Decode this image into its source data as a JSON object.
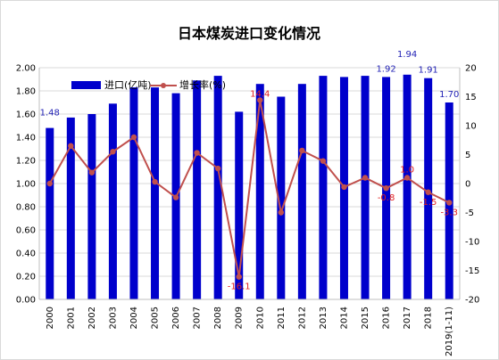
{
  "chart_data": {
    "type": "bar",
    "title": "日本煤炭进口变化情况",
    "categories": [
      "2000",
      "2001",
      "2002",
      "2003",
      "2004",
      "2005",
      "2006",
      "2007",
      "2008",
      "2009",
      "2010",
      "2011",
      "2012",
      "2013",
      "2014",
      "2015",
      "2016",
      "2017",
      "2018",
      "2019(1-11)"
    ],
    "series": [
      {
        "name": "进口(亿吨)",
        "type": "bar",
        "axis": "left",
        "color": "#0000CC",
        "values": [
          1.48,
          1.57,
          1.6,
          1.69,
          1.83,
          1.83,
          1.78,
          1.89,
          1.93,
          1.62,
          1.86,
          1.75,
          1.86,
          1.93,
          1.92,
          1.93,
          1.92,
          1.94,
          1.91,
          1.7
        ]
      },
      {
        "name": "增长率(%)",
        "type": "line",
        "axis": "right",
        "color": "#C0504D",
        "values": [
          0,
          6.5,
          1.9,
          5.5,
          8.0,
          0.3,
          -2.4,
          5.3,
          2.6,
          -16.1,
          14.4,
          -5.0,
          5.7,
          3.9,
          -0.6,
          1.0,
          -0.8,
          1.0,
          -1.5,
          -3.3
        ]
      }
    ],
    "bar_labels": {
      "0": "1.48",
      "16": "1.92",
      "17": "1.94",
      "18": "1.91",
      "19": "1.70"
    },
    "line_labels": {
      "9": "-16.1",
      "10": "14.4",
      "16": "-0.8",
      "17": "1.0",
      "18": "-1.5",
      "19": "-3.3"
    },
    "y_left": {
      "min": 0,
      "max": 2.0,
      "step": 0.2,
      "ticks": [
        "0.00",
        "0.20",
        "0.40",
        "0.60",
        "0.80",
        "1.00",
        "1.20",
        "1.40",
        "1.60",
        "1.80",
        "2.00"
      ]
    },
    "y_right": {
      "min": -20,
      "max": 20,
      "step": 5,
      "ticks": [
        "-20",
        "-15",
        "-10",
        "-5",
        "0",
        "5",
        "10",
        "15",
        "20"
      ]
    },
    "legend": {
      "position": "top-left"
    },
    "grid": true
  }
}
